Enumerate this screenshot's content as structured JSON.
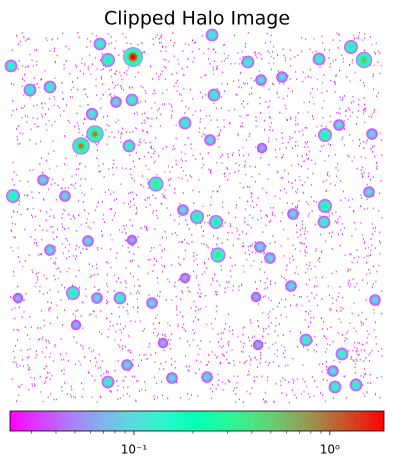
{
  "chart_data": {
    "type": "image",
    "title": "Clipped Halo Image",
    "colorbar": {
      "scale": "log",
      "clim": [
        0.0233,
        1.89
      ],
      "ticks": [
        {
          "value": 0.1,
          "label": "10⁻¹"
        },
        {
          "value": 1,
          "label": "10⁰"
        }
      ],
      "minor_ticks": [
        0.03,
        0.04,
        0.05,
        0.06,
        0.07,
        0.08,
        0.09,
        0.2,
        0.3,
        0.4,
        0.5,
        0.6,
        0.7,
        0.8,
        0.9
      ],
      "colormap": "rainbow"
    }
  }
}
